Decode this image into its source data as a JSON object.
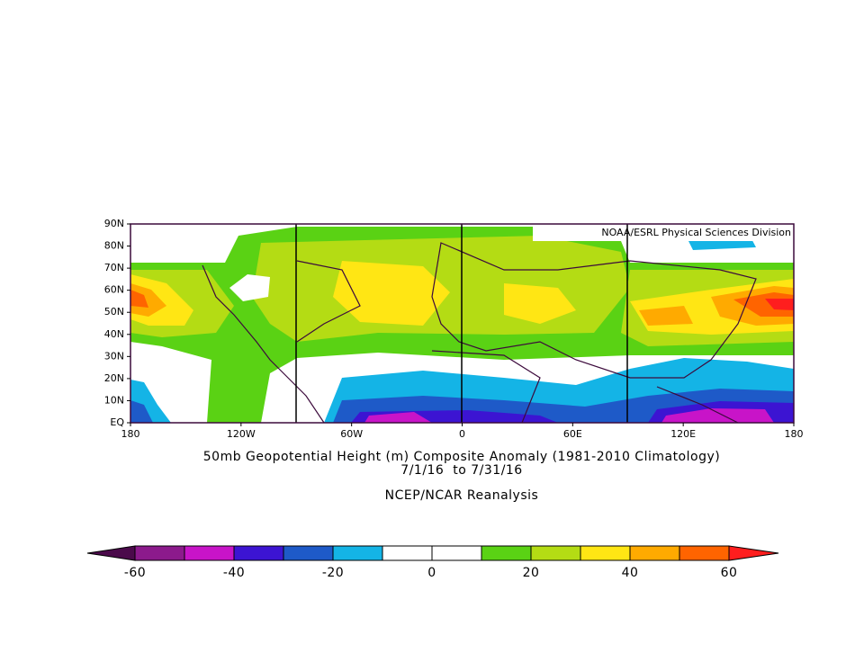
{
  "title": "50mb Geopotential Height (m) Composite Anomaly (1981-2010 Climatology)",
  "date_range": "7/1/16  to 7/31/16",
  "source": "NCEP/NCAR Reanalysis",
  "credit": "NOAA/ESRL Physical Sciences Division",
  "map": {
    "lat_labels": [
      "90N",
      "80N",
      "70N",
      "60N",
      "50N",
      "40N",
      "30N",
      "20N",
      "10N",
      "EQ"
    ],
    "lon_labels": [
      "180",
      "120W",
      "60W",
      "0",
      "60E",
      "120E",
      "180"
    ]
  },
  "colorbar": {
    "ticks": [
      -60,
      -40,
      -20,
      0,
      20,
      40,
      60
    ],
    "colors": [
      "#4b0a4b",
      "#8c1a8c",
      "#c814c8",
      "#3c14d2",
      "#1e5ac8",
      "#14b4e6",
      "#ffffff",
      "#ffffff",
      "#5ad214",
      "#b4dc14",
      "#ffe614",
      "#ffaa00",
      "#ff6400",
      "#ff1e1e"
    ]
  }
}
